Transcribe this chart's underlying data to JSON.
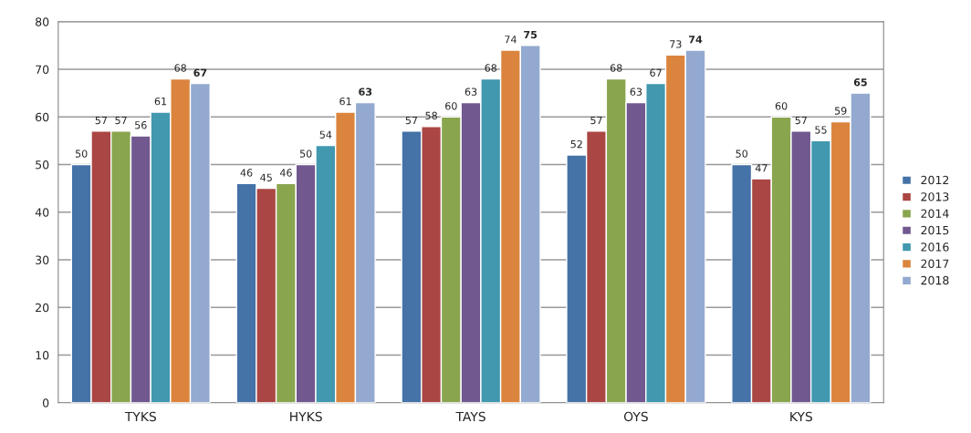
{
  "chart_data": {
    "type": "bar",
    "categories": [
      "TYKS",
      "HYKS",
      "TAYS",
      "OYS",
      "KYS"
    ],
    "series": [
      {
        "name": "2012",
        "color": "#4572a7",
        "values": [
          50,
          46,
          57,
          52,
          50
        ]
      },
      {
        "name": "2013",
        "color": "#aa4643",
        "values": [
          57,
          45,
          58,
          57,
          47
        ]
      },
      {
        "name": "2014",
        "color": "#89a54e",
        "values": [
          57,
          46,
          60,
          68,
          60
        ]
      },
      {
        "name": "2015",
        "color": "#71588f",
        "values": [
          56,
          50,
          63,
          63,
          57
        ]
      },
      {
        "name": "2016",
        "color": "#4198af",
        "values": [
          61,
          54,
          68,
          67,
          55
        ]
      },
      {
        "name": "2017",
        "color": "#db843d",
        "values": [
          68,
          61,
          74,
          73,
          59
        ]
      },
      {
        "name": "2018",
        "color": "#93a9cf",
        "values": [
          67,
          63,
          75,
          74,
          65
        ]
      }
    ],
    "ylim": [
      0,
      80
    ],
    "yticks": [
      0,
      10,
      20,
      30,
      40,
      50,
      60,
      70,
      80
    ],
    "grid": "y",
    "legend": "right",
    "data_labels": true
  }
}
